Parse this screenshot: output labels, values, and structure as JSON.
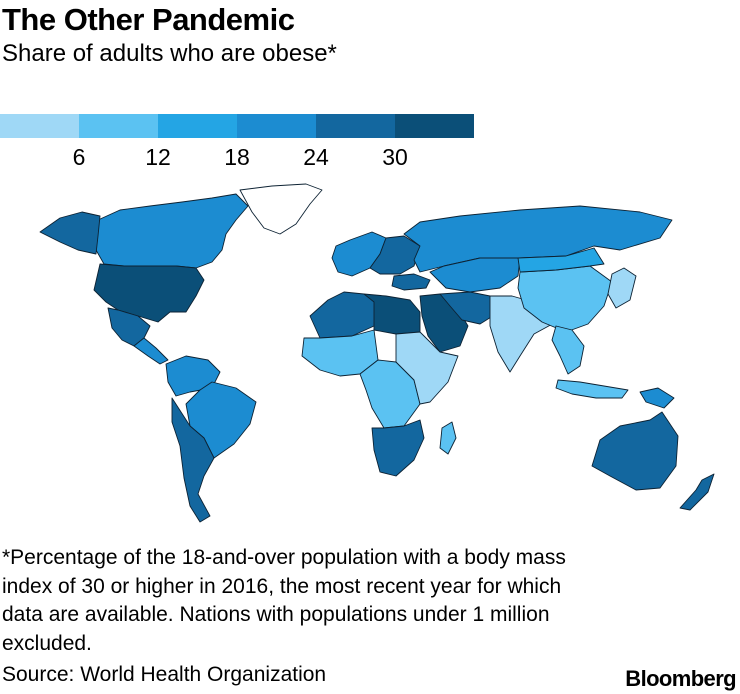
{
  "header": {
    "title": "The Other Pandemic",
    "subtitle": "Share of adults who are obese*"
  },
  "legend": {
    "colors": [
      "#9fd8f6",
      "#5bc2f2",
      "#24a5e4",
      "#1c8cd1",
      "#13679f",
      "#0b4f78"
    ],
    "ticks": [
      "6",
      "12",
      "18",
      "24",
      "30"
    ]
  },
  "map": {
    "regions": [
      {
        "name": "canada",
        "bin": 3
      },
      {
        "name": "alaska",
        "bin": 4
      },
      {
        "name": "united-states",
        "bin": 5
      },
      {
        "name": "mexico",
        "bin": 4
      },
      {
        "name": "central-america",
        "bin": 3
      },
      {
        "name": "greenland",
        "bin": null
      },
      {
        "name": "south-america-north",
        "bin": 3
      },
      {
        "name": "brazil",
        "bin": 3
      },
      {
        "name": "southern-cone",
        "bin": 4
      },
      {
        "name": "western-europe",
        "bin": 3
      },
      {
        "name": "eastern-europe",
        "bin": 4
      },
      {
        "name": "russia",
        "bin": 3
      },
      {
        "name": "turkey",
        "bin": 4
      },
      {
        "name": "north-africa",
        "bin": 4
      },
      {
        "name": "libya-egypt",
        "bin": 5
      },
      {
        "name": "arabia",
        "bin": 5
      },
      {
        "name": "west-africa",
        "bin": 1
      },
      {
        "name": "central-africa",
        "bin": 1
      },
      {
        "name": "east-africa",
        "bin": 0
      },
      {
        "name": "southern-africa",
        "bin": 4
      },
      {
        "name": "madagascar",
        "bin": 1
      },
      {
        "name": "central-asia",
        "bin": 3
      },
      {
        "name": "iran",
        "bin": 4
      },
      {
        "name": "south-asia",
        "bin": 0
      },
      {
        "name": "china",
        "bin": 1
      },
      {
        "name": "mongolia",
        "bin": 2
      },
      {
        "name": "southeast-asia",
        "bin": 1
      },
      {
        "name": "japan-korea",
        "bin": 0
      },
      {
        "name": "indonesia",
        "bin": 1
      },
      {
        "name": "papua-new-guinea",
        "bin": 3
      },
      {
        "name": "australia",
        "bin": 4
      },
      {
        "name": "new-zealand",
        "bin": 4
      }
    ]
  },
  "footnote": "*Percentage of the 18-and-over population with a body mass index of 30 or higher in 2016, the most recent year for which data are available. Nations with populations under 1 million excluded.",
  "source": "Source: World Health Organization",
  "brand": "Bloomberg"
}
